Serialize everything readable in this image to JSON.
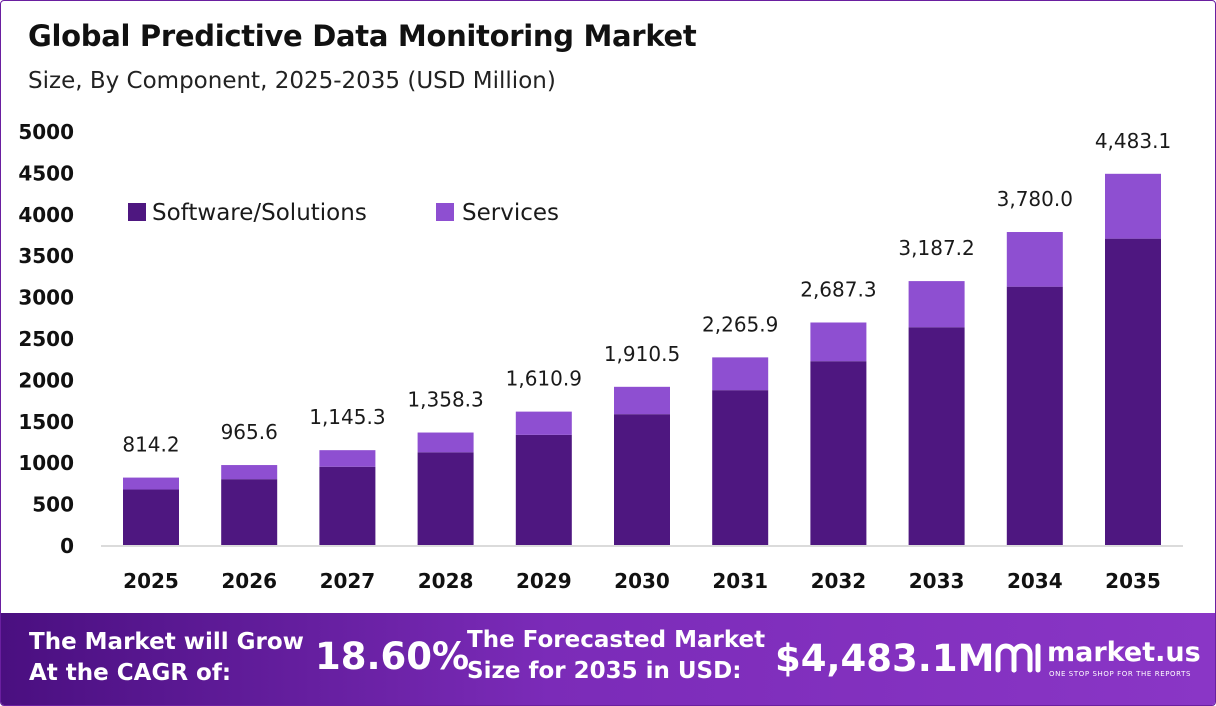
{
  "title": "Global Predictive Data Monitoring Market",
  "subtitle": "Size, By Component, 2025-2035 (USD Million)",
  "colors": {
    "software": "#4e1780",
    "services": "#8e4fd1",
    "accent": "#7b2bb8"
  },
  "chart_data": {
    "type": "bar",
    "stacked": true,
    "categories": [
      "2025",
      "2026",
      "2027",
      "2028",
      "2029",
      "2030",
      "2031",
      "2032",
      "2033",
      "2034",
      "2035"
    ],
    "series": [
      {
        "name": "Software/Solutions",
        "color": "#4e1780",
        "values": [
          670,
          795,
          945,
          1120,
          1330,
          1580,
          1870,
          2220,
          2630,
          3120,
          3700
        ]
      },
      {
        "name": "Services",
        "color": "#8e4fd1",
        "values": [
          144.2,
          170.6,
          200.3,
          238.3,
          280.9,
          330.5,
          395.9,
          467.3,
          557.2,
          660.0,
          783.1
        ]
      }
    ],
    "totals_labels": [
      "814.2",
      "965.6",
      "1,145.3",
      "1,358.3",
      "1,610.9",
      "1,910.5",
      "2,265.9",
      "2,687.3",
      "3,187.2",
      "3,780.0",
      "4,483.1"
    ],
    "totals": [
      814.2,
      965.6,
      1145.3,
      1358.3,
      1610.9,
      1910.5,
      2265.9,
      2687.3,
      3187.2,
      3780.0,
      4483.1
    ],
    "yticks": [
      0,
      500,
      1000,
      1500,
      2000,
      2500,
      3000,
      3500,
      4000,
      4500,
      5000
    ],
    "ylim": [
      0,
      5000
    ],
    "legend": "top-left",
    "grid": false
  },
  "footer": {
    "cagr_line1": "The Market will Grow",
    "cagr_line2": "At the CAGR of:",
    "cagr_value": "18.60%",
    "forecast_line1": "The Forecasted Market",
    "forecast_line2": "Size for 2035 in USD:",
    "forecast_value": "$4,483.1M",
    "brand_name": "market.us",
    "brand_tagline": "ONE STOP SHOP FOR THE REPORTS"
  }
}
